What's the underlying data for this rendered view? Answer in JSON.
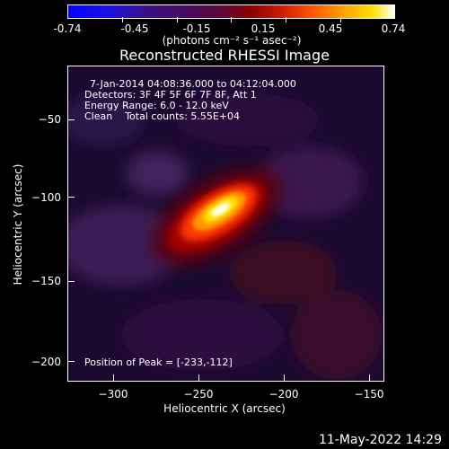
{
  "colorbar": {
    "ticks": [
      "-0.74",
      "-0.45",
      "-0.15",
      "0.15",
      "0.45",
      "0.74"
    ],
    "unit_label": "(photons cm⁻² s⁻¹ asec⁻²)"
  },
  "chart_data": {
    "type": "heatmap",
    "title": "Reconstructed RHESSI Image",
    "xlabel": "Heliocentric X (arcsec)",
    "ylabel": "Heliocentric Y (arcsec)",
    "xlim": [
      -330,
      -135
    ],
    "ylim": [
      -212,
      -18
    ],
    "x_ticks": [
      "−300",
      "−250",
      "−200",
      "−150"
    ],
    "y_ticks": [
      "−50",
      "−100",
      "−150",
      "−200"
    ],
    "colorbar_range": [
      -0.74,
      0.74
    ],
    "peak": {
      "x": -233,
      "y": -112
    }
  },
  "info": {
    "line1": "7-Jan-2014 04:08:36.000 to 04:12:04.000",
    "line2": "Detectors: 3F 4F 5F 6F 7F 8F, Att 1",
    "line3": "Energy Range: 6.0 - 12.0 keV",
    "line4": "Clean    Total counts: 5.55E+04",
    "peak_label": "Position of Peak = [-233,-112]"
  },
  "footer": {
    "date": "11-May-2022 14:29"
  }
}
